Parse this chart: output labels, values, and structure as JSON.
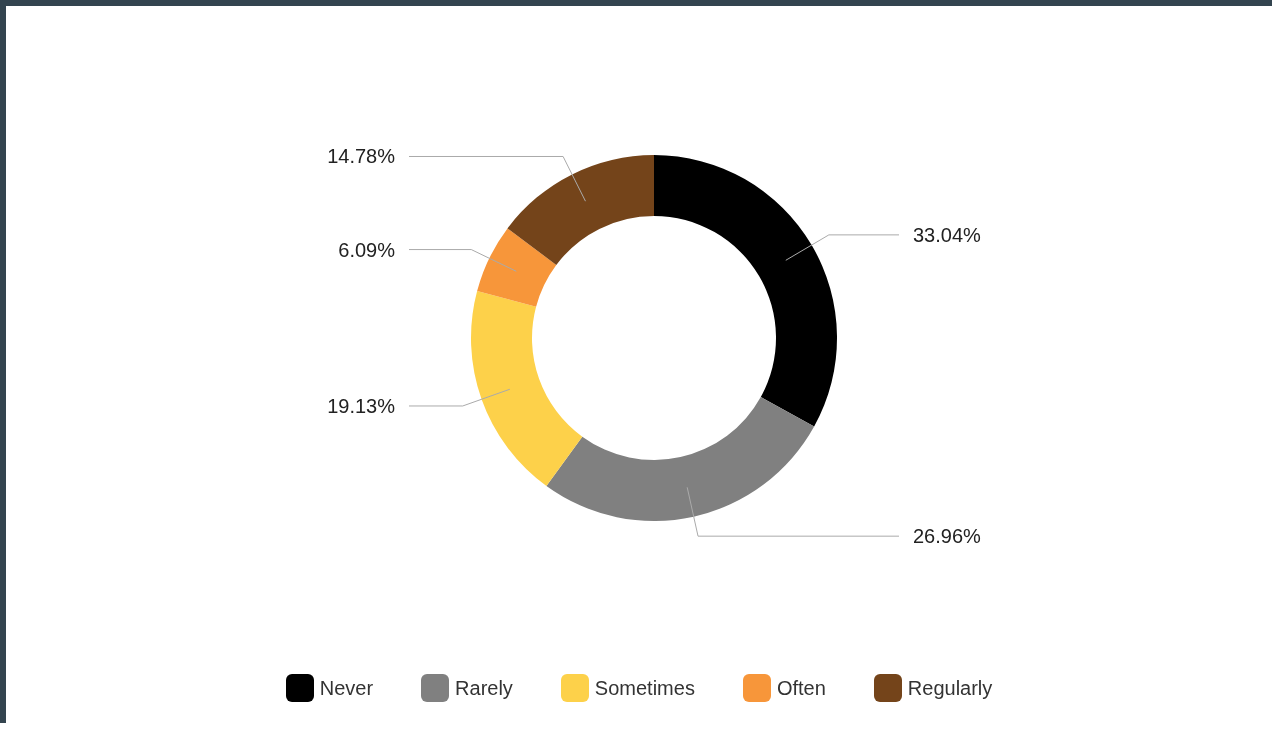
{
  "chart_data": {
    "type": "donut",
    "categories": [
      "Never",
      "Rarely",
      "Sometimes",
      "Often",
      "Regularly"
    ],
    "values": [
      33.04,
      26.96,
      19.13,
      6.09,
      14.78
    ],
    "colors": [
      "#000000",
      "#808080",
      "#fdd14a",
      "#f7963a",
      "#74441a"
    ],
    "value_labels": [
      "33.04%",
      "26.96%",
      "19.13%",
      "6.09%",
      "14.78%"
    ],
    "legend": "bottom"
  }
}
